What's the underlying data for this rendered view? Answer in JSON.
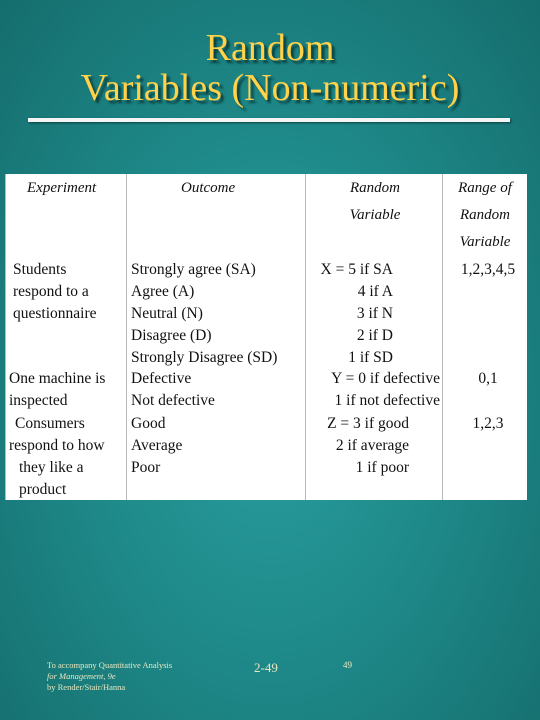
{
  "title": {
    "line1": "Random",
    "line2": "Variables  (Non-numeric)"
  },
  "table": {
    "headers": {
      "experiment": "Experiment",
      "outcome": "Outcome",
      "random_variable": [
        "Random",
        "Variable"
      ],
      "range": [
        "Range of",
        "Random",
        "Variable"
      ]
    },
    "rows": [
      {
        "experiment": [
          "Students",
          "respond to a",
          "questionnaire"
        ],
        "outcome": [
          "Strongly agree (SA)",
          "Agree (A)",
          "Neutral (N)",
          "Disagree (D)",
          "Strongly Disagree (SD)"
        ],
        "variable": [
          "X = 5 if SA",
          "4 if A",
          "3 if N",
          "2 if D",
          "1 if SD"
        ],
        "range": "1,2,3,4,5"
      },
      {
        "experiment": [
          "One machine is",
          "inspected"
        ],
        "outcome": [
          "Defective",
          "Not defective"
        ],
        "variable": [
          "Y = 0 if defective",
          "1 if not defective"
        ],
        "range": "0,1"
      },
      {
        "experiment": [
          "Consumers",
          "respond to how",
          "they like a",
          "product"
        ],
        "outcome": [
          "Good",
          "Average",
          "Poor"
        ],
        "variable": [
          "Z = 3 if good",
          "2 if average",
          "1 if poor"
        ],
        "range": "1,2,3"
      }
    ]
  },
  "footer": {
    "credit_line1": "To accompany Quantitative Analysis",
    "credit_line2": "for Management, 9e",
    "credit_line3": "by Render/Stair/Hanna",
    "slide_ref": "2-49",
    "page": "49"
  },
  "colors": {
    "background": "#1f8a8a",
    "title": "#ffd24a",
    "panel": "#ffffff"
  }
}
